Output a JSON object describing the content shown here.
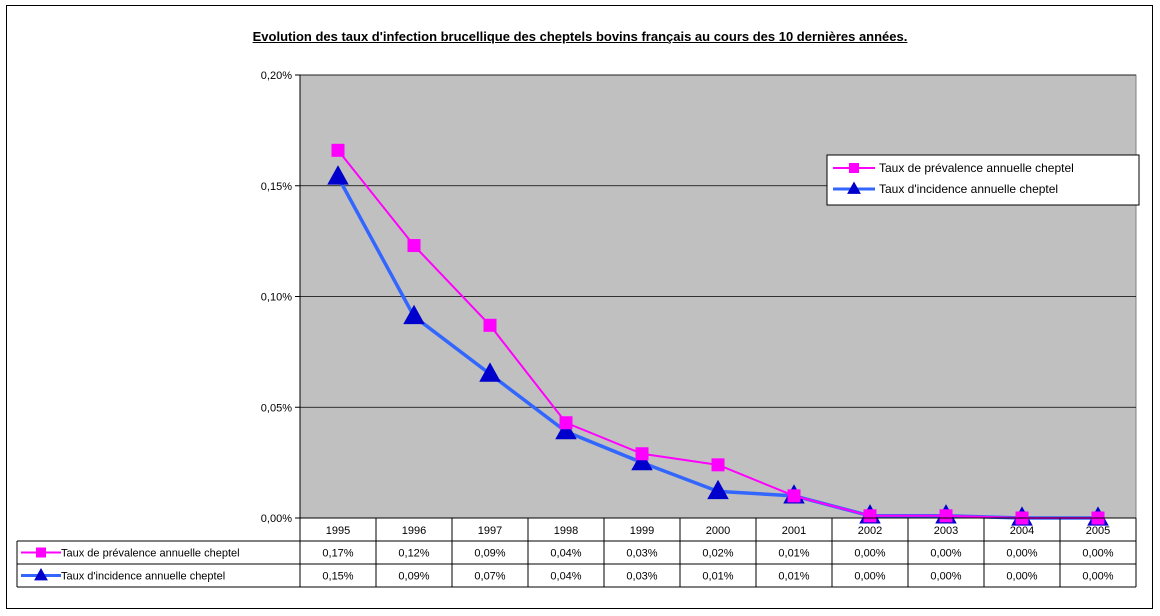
{
  "chart_data": {
    "type": "line",
    "title": "Evolution des taux d'infection brucellique des cheptels bovins français au cours des 10 dernières années.",
    "xlabel": "",
    "ylabel": "",
    "categories": [
      "1995",
      "1996",
      "1997",
      "1998",
      "1999",
      "2000",
      "2001",
      "2002",
      "2003",
      "2004",
      "2005"
    ],
    "ylim": [
      0,
      0.2
    ],
    "yticks": [
      "0,00%",
      "0,05%",
      "0,10%",
      "0,15%",
      "0,20%"
    ],
    "grid": true,
    "legend_position": "top-right",
    "plot_background": "#C0C0C0",
    "series": [
      {
        "name": "Taux de prévalence annuelle cheptel",
        "color": "#FF00FF",
        "marker": "square",
        "values": [
          0.166,
          0.123,
          0.087,
          0.043,
          0.029,
          0.024,
          0.01,
          0.001,
          0.001,
          0.0,
          0.0
        ],
        "table_values": [
          "0,17%",
          "0,12%",
          "0,09%",
          "0,04%",
          "0,03%",
          "0,02%",
          "0,01%",
          "0,00%",
          "0,00%",
          "0,00%",
          "0,00%"
        ]
      },
      {
        "name": "Taux d'incidence annuelle cheptel",
        "color": "#3366FF",
        "marker": "triangle",
        "values": [
          0.154,
          0.091,
          0.065,
          0.039,
          0.025,
          0.012,
          0.01,
          0.001,
          0.001,
          0.0,
          0.0
        ],
        "table_values": [
          "0,15%",
          "0,09%",
          "0,07%",
          "0,04%",
          "0,03%",
          "0,01%",
          "0,01%",
          "0,00%",
          "0,00%",
          "0,00%",
          "0,00%"
        ]
      }
    ]
  }
}
